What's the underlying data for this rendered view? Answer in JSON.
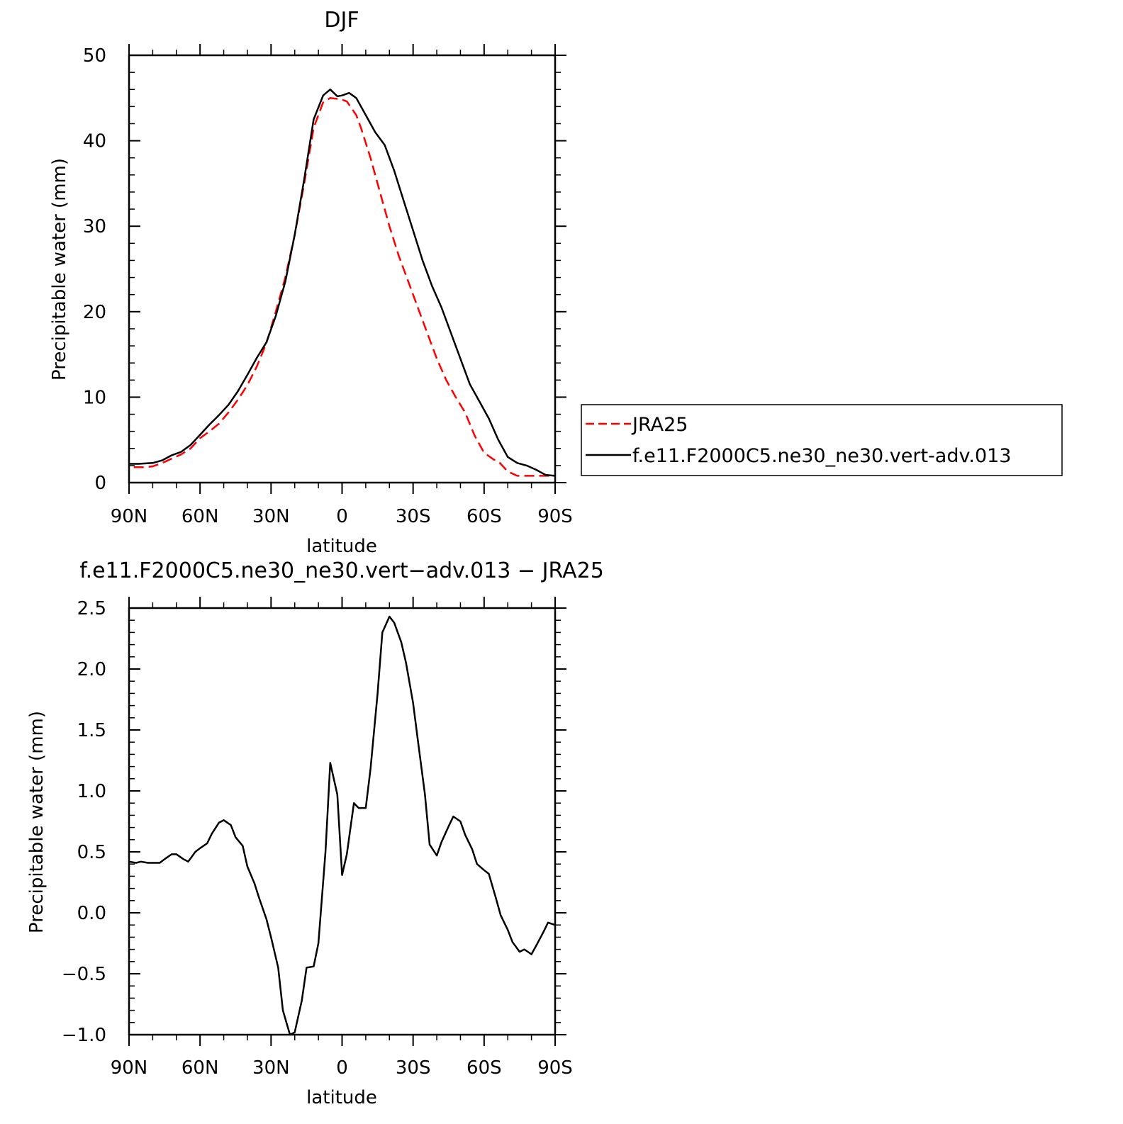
{
  "chart_data": [
    {
      "type": "line",
      "title": "DJF",
      "xlabel": "latitude",
      "ylabel": "Precipitable water (mm)",
      "xlim": [
        90,
        -90
      ],
      "ylim": [
        0,
        50
      ],
      "yticks": [
        0,
        10,
        20,
        30,
        40,
        50
      ],
      "ytick_labels": [
        "0",
        "10",
        "20",
        "30",
        "40",
        "50"
      ],
      "xticks": [
        90,
        60,
        30,
        0,
        -30,
        -60,
        -90
      ],
      "xtick_labels": [
        "90N",
        "60N",
        "30N",
        "0",
        "30S",
        "60S",
        "90S"
      ],
      "legend": "right",
      "grid": false,
      "series": [
        {
          "name": "JRA25",
          "color": "#ff0000",
          "dash": "dashed",
          "x": [
            88,
            84,
            80,
            76,
            72,
            68,
            64,
            60,
            56,
            52,
            48,
            44,
            40,
            36,
            32,
            28,
            24,
            20,
            16,
            12,
            8,
            5,
            2,
            0,
            -2,
            -6,
            -8,
            -12,
            -16,
            -20,
            -24,
            -28,
            -32,
            -36,
            -40,
            -44,
            -48,
            -52,
            -56,
            -60,
            -64,
            -66,
            -70,
            -74,
            -78,
            -82,
            -86,
            -90
          ],
          "y": [
            1.8,
            1.8,
            1.9,
            2.3,
            2.8,
            3.3,
            4.0,
            5.2,
            6.0,
            6.9,
            8.2,
            9.7,
            11.4,
            13.6,
            16.3,
            20.0,
            24.0,
            29.0,
            35.0,
            41.5,
            44.5,
            45.0,
            44.9,
            44.8,
            44.6,
            43.0,
            41.5,
            38.0,
            34.0,
            30.0,
            26.5,
            23.5,
            20.5,
            17.5,
            14.5,
            12.0,
            10.0,
            8.2,
            5.5,
            3.5,
            2.7,
            2.5,
            1.3,
            0.8,
            0.8,
            0.8,
            0.8,
            0.8
          ]
        },
        {
          "name": "f.e11.F2000C5.ne30_ne30.vert-adv.013",
          "color": "#000000",
          "dash": "solid",
          "x": [
            90,
            86,
            80,
            76,
            72,
            68,
            64,
            60,
            56,
            52,
            48,
            44,
            40,
            36,
            32,
            28,
            24,
            20,
            16,
            12,
            8,
            5,
            2,
            0,
            -3,
            -6,
            -10,
            -14,
            -18,
            -22,
            -26,
            -30,
            -34,
            -38,
            -42,
            -46,
            -50,
            -54,
            -58,
            -62,
            -66,
            -70,
            -74,
            -78,
            -82,
            -86,
            -90
          ],
          "y": [
            2.2,
            2.2,
            2.3,
            2.6,
            3.2,
            3.6,
            4.4,
            5.6,
            6.8,
            7.9,
            9.1,
            10.7,
            12.6,
            14.6,
            16.4,
            19.5,
            23.5,
            29.0,
            35.5,
            42.5,
            45.3,
            46.0,
            45.2,
            45.3,
            45.6,
            45.0,
            43.0,
            41.0,
            39.5,
            36.5,
            33.0,
            29.5,
            26.0,
            23.0,
            20.5,
            17.5,
            14.5,
            11.5,
            9.5,
            7.5,
            5.0,
            3.0,
            2.3,
            2.0,
            1.5,
            0.9,
            0.8
          ]
        }
      ]
    },
    {
      "type": "line",
      "title": "f.e11.F2000C5.ne30_ne30.vert−adv.013 − JRA25",
      "xlabel": "latitude",
      "ylabel": "Precipitable water (mm)",
      "xlim": [
        90,
        -90
      ],
      "ylim": [
        -1.0,
        2.5
      ],
      "yticks": [
        -1.0,
        -0.5,
        0.0,
        0.5,
        1.0,
        1.5,
        2.0,
        2.5
      ],
      "ytick_labels": [
        "−1.0",
        "−0.5",
        "0.0",
        "0.5",
        "1.0",
        "1.5",
        "2.0",
        "2.5"
      ],
      "xticks": [
        90,
        60,
        30,
        0,
        -30,
        -60,
        -90
      ],
      "xtick_labels": [
        "90N",
        "60N",
        "30N",
        "0",
        "30S",
        "60S",
        "90S"
      ],
      "grid": false,
      "series": [
        {
          "color": "#000000",
          "dash": "solid",
          "x": [
            90,
            87,
            85,
            82,
            79,
            77,
            75,
            72,
            70,
            67,
            65,
            62,
            60,
            57,
            55,
            52,
            50,
            47,
            45,
            42,
            40,
            37,
            35,
            32,
            30,
            27,
            25,
            22,
            20,
            17,
            15,
            12,
            10,
            7,
            5,
            2,
            0,
            -2,
            -5,
            -7,
            -10,
            -12,
            -15,
            -17,
            -20,
            -22,
            -25,
            -27,
            -30,
            -32,
            -35,
            -37,
            -40,
            -42,
            -45,
            -47,
            -50,
            -52,
            -55,
            -57,
            -60,
            -62,
            -65,
            -67,
            -70,
            -72,
            -75,
            -77,
            -80,
            -82,
            -85,
            -87,
            -90
          ],
          "y": [
            0.42,
            0.41,
            0.42,
            0.41,
            0.41,
            0.41,
            0.44,
            0.48,
            0.48,
            0.44,
            0.42,
            0.5,
            0.53,
            0.57,
            0.65,
            0.74,
            0.76,
            0.72,
            0.62,
            0.55,
            0.38,
            0.24,
            0.12,
            -0.05,
            -0.2,
            -0.45,
            -0.8,
            -1.0,
            -0.98,
            -0.72,
            -0.45,
            -0.44,
            -0.25,
            0.5,
            1.23,
            0.97,
            0.31,
            0.48,
            0.9,
            0.86,
            0.86,
            1.18,
            1.8,
            2.3,
            2.43,
            2.38,
            2.22,
            2.05,
            1.72,
            1.42,
            0.97,
            0.56,
            0.47,
            0.58,
            0.71,
            0.79,
            0.75,
            0.64,
            0.52,
            0.4,
            0.35,
            0.32,
            0.12,
            -0.02,
            -0.14,
            -0.24,
            -0.32,
            -0.3,
            -0.34,
            -0.27,
            -0.16,
            -0.08,
            -0.1
          ]
        }
      ]
    }
  ]
}
